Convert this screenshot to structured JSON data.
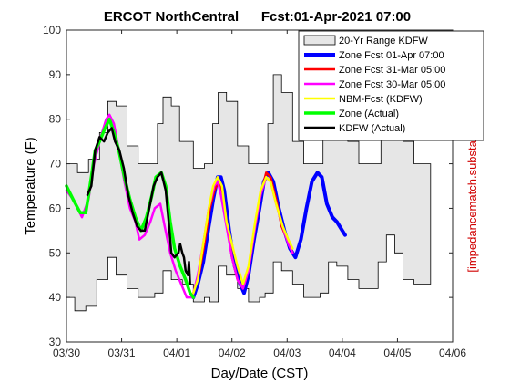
{
  "chart_data": {
    "type": "line",
    "title": "ERCOT NorthCentral",
    "subtitle": "Fcst:01-Apr-2021 07:00",
    "xlabel": "Day/Date (CST)",
    "ylabel": "Temperature (F)",
    "xlim": [
      0,
      7
    ],
    "ylim": [
      30,
      100
    ],
    "x_tick_values": [
      0,
      1,
      2,
      3,
      4,
      5,
      6,
      7
    ],
    "x_tick_labels": [
      "03/30",
      "03/31",
      "04/01",
      "04/02",
      "04/03",
      "04/04",
      "04/05",
      "04/06"
    ],
    "y_tick_values": [
      30,
      40,
      50,
      60,
      70,
      80,
      90,
      100
    ],
    "y_tick_labels": [
      "30",
      "40",
      "50",
      "60",
      "70",
      "80",
      "90",
      "100"
    ],
    "grid": false,
    "legend_position": "top-right",
    "watermark": "[impedancematch.substack.com]",
    "range": {
      "name": "20-Yr Range KDFW",
      "color": "#e6e6e6",
      "upper": [
        [
          0.0,
          70
        ],
        [
          0.2,
          68
        ],
        [
          0.4,
          71
        ],
        [
          0.6,
          77
        ],
        [
          0.75,
          84
        ],
        [
          0.9,
          83
        ],
        [
          1.1,
          74
        ],
        [
          1.3,
          70
        ],
        [
          1.5,
          70
        ],
        [
          1.65,
          79
        ],
        [
          1.75,
          85
        ],
        [
          1.9,
          83
        ],
        [
          2.05,
          75
        ],
        [
          2.3,
          69
        ],
        [
          2.5,
          70
        ],
        [
          2.65,
          79
        ],
        [
          2.75,
          86
        ],
        [
          2.9,
          84
        ],
        [
          3.1,
          74
        ],
        [
          3.3,
          70
        ],
        [
          3.5,
          70
        ],
        [
          3.65,
          79
        ],
        [
          3.75,
          90
        ],
        [
          3.9,
          86
        ],
        [
          4.1,
          75
        ],
        [
          4.3,
          70
        ],
        [
          4.5,
          70
        ],
        [
          4.65,
          80
        ],
        [
          4.75,
          87
        ],
        [
          4.9,
          85
        ],
        [
          5.1,
          75
        ],
        [
          5.3,
          70
        ],
        [
          5.5,
          70
        ],
        [
          5.7,
          80
        ],
        [
          5.8,
          90
        ],
        [
          5.95,
          86
        ],
        [
          6.1,
          75
        ],
        [
          6.3,
          70
        ],
        [
          6.6,
          70
        ]
      ],
      "lower": [
        [
          0.0,
          40
        ],
        [
          0.15,
          37
        ],
        [
          0.35,
          38
        ],
        [
          0.55,
          44
        ],
        [
          0.75,
          49
        ],
        [
          0.9,
          45
        ],
        [
          1.1,
          42
        ],
        [
          1.3,
          40
        ],
        [
          1.5,
          40
        ],
        [
          1.6,
          41
        ],
        [
          1.75,
          46
        ],
        [
          1.9,
          44
        ],
        [
          2.1,
          43
        ],
        [
          2.3,
          39
        ],
        [
          2.5,
          40
        ],
        [
          2.6,
          39
        ],
        [
          2.75,
          47
        ],
        [
          2.9,
          45
        ],
        [
          3.1,
          42
        ],
        [
          3.3,
          39
        ],
        [
          3.5,
          40
        ],
        [
          3.6,
          41
        ],
        [
          3.75,
          48
        ],
        [
          3.9,
          46
        ],
        [
          4.1,
          43
        ],
        [
          4.3,
          40
        ],
        [
          4.5,
          40
        ],
        [
          4.6,
          41
        ],
        [
          4.75,
          48
        ],
        [
          4.9,
          47
        ],
        [
          5.1,
          44
        ],
        [
          5.3,
          42
        ],
        [
          5.5,
          42
        ],
        [
          5.65,
          48
        ],
        [
          5.8,
          54
        ],
        [
          5.95,
          50
        ],
        [
          6.1,
          44
        ],
        [
          6.3,
          43
        ],
        [
          6.6,
          44
        ]
      ]
    },
    "series": [
      {
        "name": "Zone Fcst 01-Apr 07:00",
        "color": "#0000ff",
        "width": 4,
        "points": [
          [
            2.3,
            40
          ],
          [
            2.38,
            43
          ],
          [
            2.48,
            48
          ],
          [
            2.58,
            56
          ],
          [
            2.66,
            62
          ],
          [
            2.74,
            67
          ],
          [
            2.8,
            67
          ],
          [
            2.86,
            64
          ],
          [
            2.95,
            55
          ],
          [
            3.05,
            47
          ],
          [
            3.15,
            43
          ],
          [
            3.22,
            41
          ],
          [
            3.3,
            45
          ],
          [
            3.4,
            53
          ],
          [
            3.5,
            60
          ],
          [
            3.58,
            66
          ],
          [
            3.66,
            68
          ],
          [
            3.75,
            66
          ],
          [
            3.85,
            60
          ],
          [
            3.95,
            55
          ],
          [
            4.05,
            51
          ],
          [
            4.15,
            49
          ],
          [
            4.25,
            53
          ],
          [
            4.35,
            60
          ],
          [
            4.45,
            66
          ],
          [
            4.55,
            68
          ],
          [
            4.63,
            67
          ],
          [
            4.72,
            61
          ],
          [
            4.82,
            58
          ],
          [
            4.9,
            57
          ],
          [
            5.0,
            55
          ],
          [
            5.05,
            54
          ]
        ]
      },
      {
        "name": "Zone Fcst 31-Mar 05:00",
        "color": "#ff0000",
        "width": 2.5,
        "points": [
          [
            2.3,
            41
          ],
          [
            2.4,
            45
          ],
          [
            2.5,
            52
          ],
          [
            2.6,
            60
          ],
          [
            2.68,
            64
          ],
          [
            2.76,
            66
          ],
          [
            2.82,
            64
          ],
          [
            2.9,
            57
          ],
          [
            3.0,
            49
          ],
          [
            3.1,
            44
          ],
          [
            3.2,
            42
          ],
          [
            3.3,
            46
          ],
          [
            3.42,
            56
          ],
          [
            3.52,
            63
          ],
          [
            3.62,
            68
          ],
          [
            3.7,
            67
          ],
          [
            3.8,
            62
          ],
          [
            3.9,
            56
          ],
          [
            4.0,
            53
          ],
          [
            4.1,
            50
          ]
        ]
      },
      {
        "name": "Zone Fcst 30-Mar 05:00",
        "color": "#ff00ff",
        "width": 2.5,
        "points": [
          [
            0.0,
            64
          ],
          [
            0.12,
            62
          ],
          [
            0.28,
            58
          ],
          [
            0.4,
            62
          ],
          [
            0.5,
            70
          ],
          [
            0.62,
            76
          ],
          [
            0.72,
            80
          ],
          [
            0.78,
            81
          ],
          [
            0.86,
            79
          ],
          [
            0.95,
            73
          ],
          [
            1.05,
            66
          ],
          [
            1.15,
            60
          ],
          [
            1.25,
            57
          ],
          [
            1.32,
            53
          ],
          [
            1.42,
            54
          ],
          [
            1.52,
            57
          ],
          [
            1.6,
            60
          ],
          [
            1.7,
            61
          ],
          [
            1.78,
            56
          ],
          [
            1.88,
            50
          ],
          [
            1.98,
            46
          ],
          [
            2.08,
            43
          ],
          [
            2.18,
            40
          ],
          [
            2.28,
            40
          ],
          [
            2.38,
            45
          ],
          [
            2.48,
            52
          ],
          [
            2.58,
            60
          ],
          [
            2.68,
            65
          ],
          [
            2.74,
            66
          ],
          [
            2.8,
            63
          ],
          [
            2.9,
            56
          ],
          [
            3.0,
            49
          ],
          [
            3.1,
            44
          ],
          [
            3.2,
            42
          ],
          [
            3.3,
            46
          ],
          [
            3.42,
            56
          ],
          [
            3.52,
            63
          ],
          [
            3.62,
            67
          ],
          [
            3.7,
            66
          ],
          [
            3.8,
            61
          ],
          [
            3.92,
            56
          ],
          [
            4.02,
            52
          ],
          [
            4.1,
            50
          ]
        ]
      },
      {
        "name": "NBM-Fcst (KDFW)",
        "color": "#ffff00",
        "width": 2.5,
        "points": [
          [
            2.3,
            41
          ],
          [
            2.38,
            44
          ],
          [
            2.48,
            52
          ],
          [
            2.58,
            60
          ],
          [
            2.66,
            65
          ],
          [
            2.74,
            67
          ],
          [
            2.82,
            65
          ],
          [
            2.9,
            57
          ],
          [
            3.0,
            52
          ],
          [
            3.1,
            47
          ],
          [
            3.2,
            43
          ],
          [
            3.3,
            47
          ],
          [
            3.42,
            57
          ],
          [
            3.52,
            64
          ],
          [
            3.62,
            67
          ],
          [
            3.7,
            66
          ],
          [
            3.8,
            61
          ],
          [
            3.92,
            56
          ],
          [
            4.02,
            53
          ],
          [
            4.1,
            51
          ]
        ]
      },
      {
        "name": "Zone (Actual)",
        "color": "#00ff00",
        "width": 3.5,
        "points": [
          [
            0.0,
            65
          ],
          [
            0.12,
            62
          ],
          [
            0.25,
            59
          ],
          [
            0.35,
            59
          ],
          [
            0.45,
            67
          ],
          [
            0.52,
            73
          ],
          [
            0.6,
            75
          ],
          [
            0.7,
            78
          ],
          [
            0.78,
            80
          ],
          [
            0.86,
            77
          ],
          [
            0.95,
            73
          ],
          [
            1.05,
            67
          ],
          [
            1.15,
            62
          ],
          [
            1.25,
            58
          ],
          [
            1.35,
            55
          ],
          [
            1.45,
            58
          ],
          [
            1.55,
            63
          ],
          [
            1.62,
            67
          ],
          [
            1.72,
            68
          ],
          [
            1.8,
            65
          ],
          [
            1.88,
            57
          ],
          [
            1.96,
            51
          ],
          [
            2.06,
            47
          ],
          [
            2.16,
            44
          ],
          [
            2.24,
            41
          ],
          [
            2.3,
            40
          ]
        ]
      },
      {
        "name": "KDFW (Actual)",
        "color": "#000000",
        "width": 2.5,
        "points": [
          [
            0.38,
            63
          ],
          [
            0.45,
            65
          ],
          [
            0.52,
            73
          ],
          [
            0.6,
            76
          ],
          [
            0.68,
            75
          ],
          [
            0.75,
            77
          ],
          [
            0.82,
            78
          ],
          [
            0.88,
            75
          ],
          [
            0.96,
            73
          ],
          [
            1.04,
            69
          ],
          [
            1.12,
            63
          ],
          [
            1.2,
            59
          ],
          [
            1.28,
            56
          ],
          [
            1.35,
            55
          ],
          [
            1.42,
            55
          ],
          [
            1.5,
            60
          ],
          [
            1.58,
            65
          ],
          [
            1.65,
            67
          ],
          [
            1.72,
            68
          ],
          [
            1.8,
            64
          ],
          [
            1.86,
            56
          ],
          [
            1.9,
            50
          ],
          [
            1.96,
            49
          ],
          [
            2.03,
            50
          ],
          [
            2.06,
            52
          ],
          [
            2.1,
            50
          ],
          [
            2.13,
            49
          ],
          [
            2.16,
            46
          ],
          [
            2.2,
            45
          ],
          [
            2.22,
            48
          ],
          [
            2.24,
            43
          ]
        ]
      }
    ]
  }
}
